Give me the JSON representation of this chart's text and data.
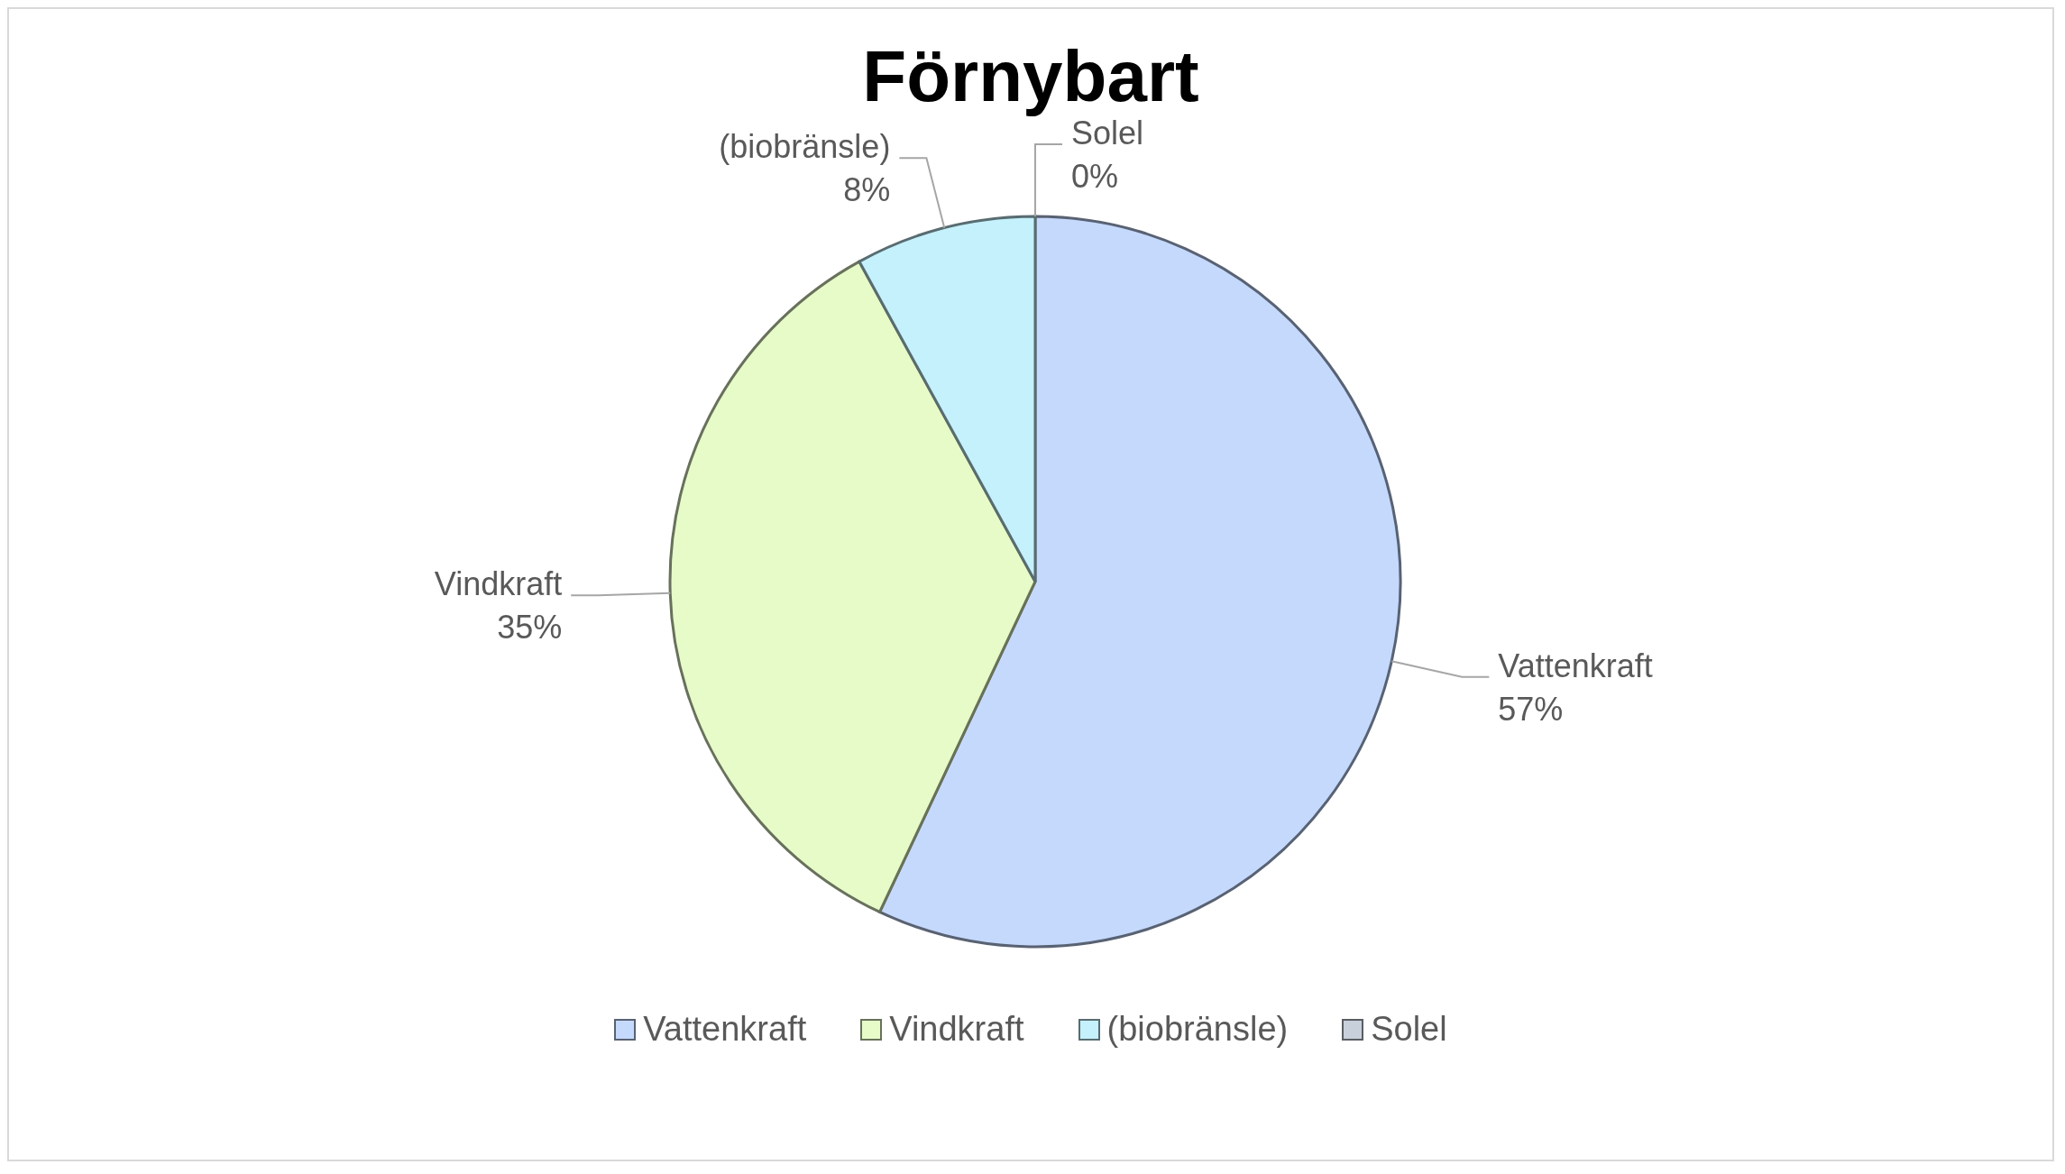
{
  "chart_data": {
    "type": "pie",
    "title": "Förnybart",
    "categories": [
      "Vattenkraft",
      "Vindkraft",
      "(biobränsle)",
      "Solel"
    ],
    "values": [
      57,
      35,
      8,
      0
    ],
    "value_labels": [
      "57%",
      "35%",
      "8%",
      "0%"
    ],
    "colors": [
      "#c5d9fd",
      "#e6fbc8",
      "#c4f1fb",
      "#c8d0dc"
    ],
    "legend": "bottom"
  }
}
